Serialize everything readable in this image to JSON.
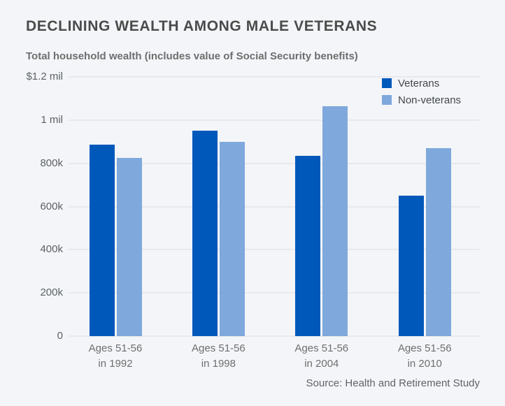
{
  "page": {
    "title": "DECLINING WEALTH AMONG MALE VETERANS",
    "subtitle": "Total household wealth (includes value of Social Security benefits)",
    "source": "Source: Health and Retirement Study"
  },
  "colors": {
    "background": "#f3f5f8",
    "gridline": "#e6e9ee",
    "title_text": "#4b4b4b",
    "axis_text": "#5d6166",
    "veterans_blue": "#0058bb",
    "non_veterans_blue": "#7fa8dc"
  },
  "chart_data": {
    "type": "bar",
    "title": "DECLINING WEALTH AMONG MALE VETERANS",
    "subtitle": "Total household wealth (includes value of Social Security benefits)",
    "categories": [
      [
        "Ages 51-56",
        "in 1992"
      ],
      [
        "Ages 51-56",
        "in 1998"
      ],
      [
        "Ages 51-56",
        "in 2004"
      ],
      [
        "Ages 51-56",
        "in 2010"
      ]
    ],
    "series": [
      {
        "name": "Veterans",
        "color": "#0058bb",
        "values": [
          885000,
          950000,
          835000,
          650000
        ]
      },
      {
        "name": "Non-veterans",
        "color": "#7fa8dc",
        "values": [
          825000,
          900000,
          1065000,
          870000
        ]
      }
    ],
    "xlabel": "",
    "ylabel": "Total household wealth",
    "ylim": [
      0,
      1200000
    ],
    "ytick_values": [
      0,
      200000,
      400000,
      600000,
      800000,
      1000000,
      1200000
    ],
    "ytick_labels": [
      "0",
      "200k",
      "400k",
      "600k",
      "800k",
      "1 mil",
      "$1.2 mil"
    ],
    "grid": true,
    "legend_position": "top-right",
    "source": "Source: Health and Retirement Study"
  }
}
